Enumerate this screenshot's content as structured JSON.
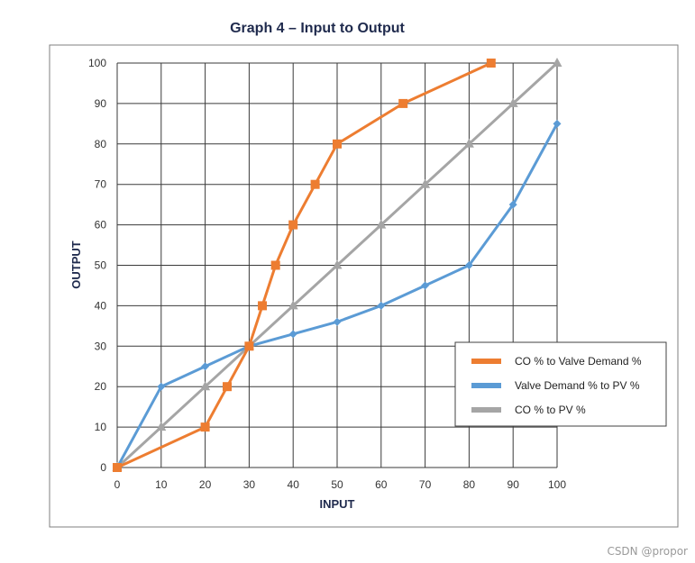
{
  "chart_data": {
    "type": "line",
    "title": "Graph 4 – Input to Output",
    "xlabel": "INPUT",
    "ylabel": "OUTPUT",
    "xlim": [
      0,
      100
    ],
    "ylim": [
      0,
      100
    ],
    "x_ticks": [
      0,
      10,
      20,
      30,
      40,
      50,
      60,
      70,
      80,
      90,
      100
    ],
    "y_ticks": [
      0,
      10,
      20,
      30,
      40,
      50,
      60,
      70,
      80,
      90,
      100
    ],
    "grid": true,
    "legend_position": "right",
    "series": [
      {
        "name": "CO % to Valve Demand %",
        "color": "#ed7d31",
        "marker": "square",
        "x": [
          0,
          20,
          25,
          30,
          33,
          36,
          40,
          45,
          50,
          65,
          85
        ],
        "y": [
          0,
          10,
          20,
          30,
          40,
          50,
          60,
          70,
          80,
          90,
          100
        ]
      },
      {
        "name": "Valve Demand % to PV %",
        "color": "#5b9bd5",
        "marker": "diamond",
        "x": [
          0,
          10,
          20,
          30,
          40,
          50,
          60,
          70,
          80,
          90,
          100
        ],
        "y": [
          0,
          20,
          25,
          30,
          33,
          36,
          40,
          45,
          50,
          65,
          85
        ]
      },
      {
        "name": "CO % to PV %",
        "color": "#a5a5a5",
        "marker": "triangle",
        "x": [
          0,
          10,
          20,
          30,
          40,
          50,
          60,
          70,
          80,
          90,
          100
        ],
        "y": [
          0,
          10,
          20,
          30,
          40,
          50,
          60,
          70,
          80,
          90,
          100
        ]
      }
    ]
  },
  "watermark": "CSDN @propor"
}
